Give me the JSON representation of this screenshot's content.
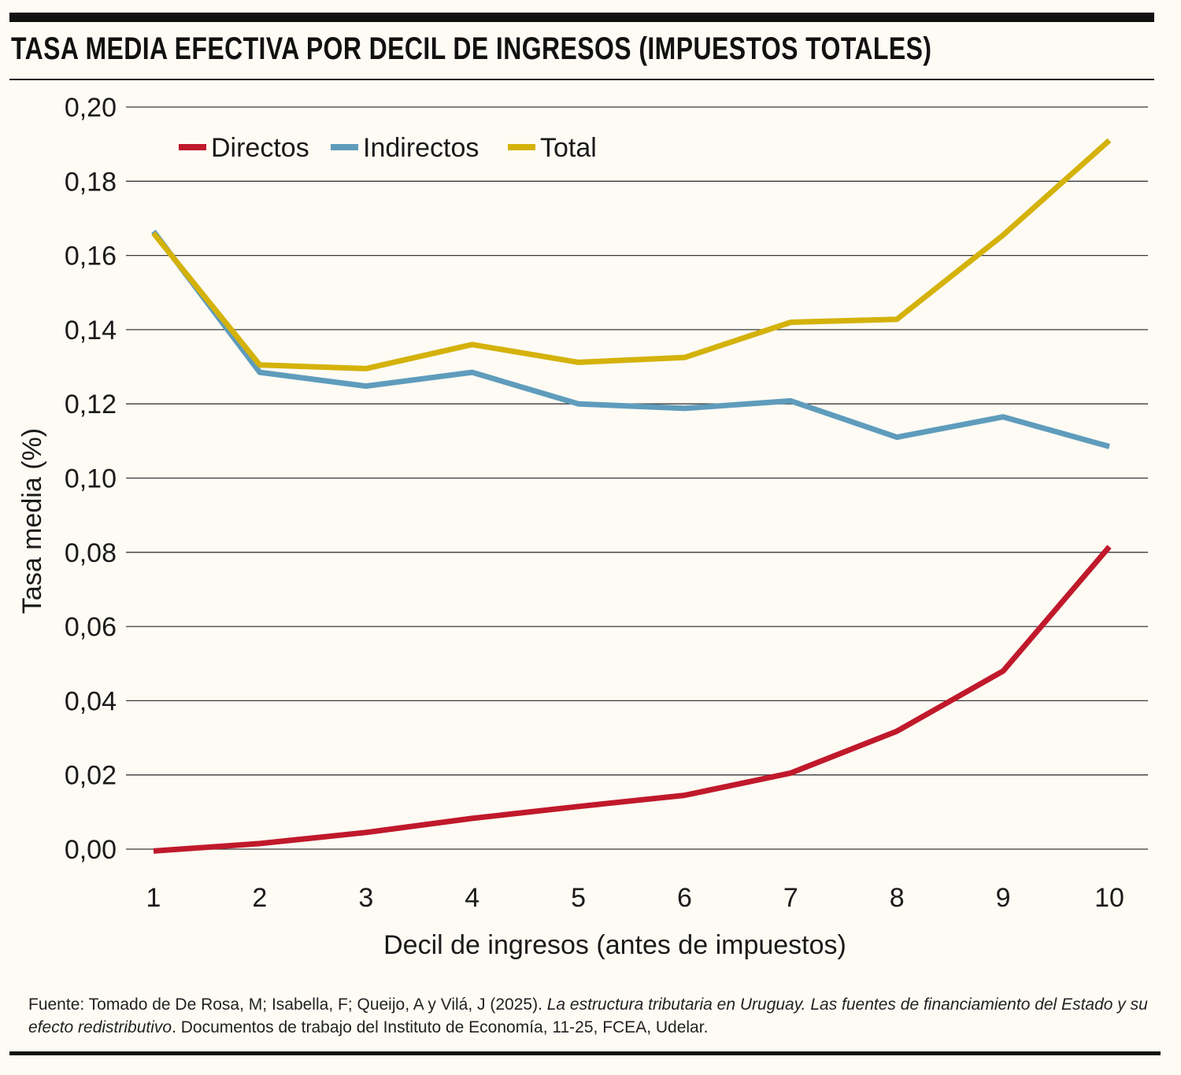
{
  "title": "TASA MEDIA EFECTIVA POR DECIL DE INGRESOS (IMPUESTOS TOTALES)",
  "source": {
    "prefix": "Fuente: Tomado de De Rosa, M; Isabella, F; Queijo, A y Vilá, J (2025). ",
    "italic": "La estructura tributaria en Uruguay. Las fuentes de financiamiento del Estado y su efecto redistributivo",
    "suffix": ". Documentos de trabajo del Instituto de Economía, 11-25, FCEA, Udelar."
  },
  "chart_data": {
    "type": "line",
    "title": "TASA MEDIA EFECTIVA POR DECIL DE INGRESOS (IMPUESTOS TOTALES)",
    "xlabel": "Decil de ingresos (antes de impuestos)",
    "ylabel": "Tasa media (%)",
    "x": [
      1,
      2,
      3,
      4,
      5,
      6,
      7,
      8,
      9,
      10
    ],
    "x_tick_labels": [
      "1",
      "2",
      "3",
      "4",
      "5",
      "6",
      "7",
      "8",
      "9",
      "10"
    ],
    "y_ticks": [
      0.0,
      0.02,
      0.04,
      0.06,
      0.08,
      0.1,
      0.12,
      0.14,
      0.16,
      0.18,
      0.2
    ],
    "y_tick_labels": [
      "0,00",
      "0,02",
      "0,04",
      "0,06",
      "0,08",
      "0,10",
      "0,12",
      "0,14",
      "0,16",
      "0,18",
      "0,20"
    ],
    "ylim": [
      0.0,
      0.2
    ],
    "grid": "horizontal",
    "legend": "top-left",
    "series": [
      {
        "name": "Directos",
        "color": "#c0192b",
        "values": [
          -0.0005,
          0.0015,
          0.0045,
          0.0083,
          0.0115,
          0.0145,
          0.0205,
          0.0318,
          0.048,
          0.0815
        ]
      },
      {
        "name": "Indirectos",
        "color": "#5f9cbc",
        "values": [
          0.1665,
          0.1285,
          0.1248,
          0.1285,
          0.12,
          0.1188,
          0.1208,
          0.111,
          0.1165,
          0.1085
        ]
      },
      {
        "name": "Total",
        "color": "#d4b20a",
        "values": [
          0.166,
          0.1305,
          0.1295,
          0.136,
          0.1312,
          0.1325,
          0.142,
          0.1428,
          0.1655,
          0.191
        ]
      }
    ]
  }
}
